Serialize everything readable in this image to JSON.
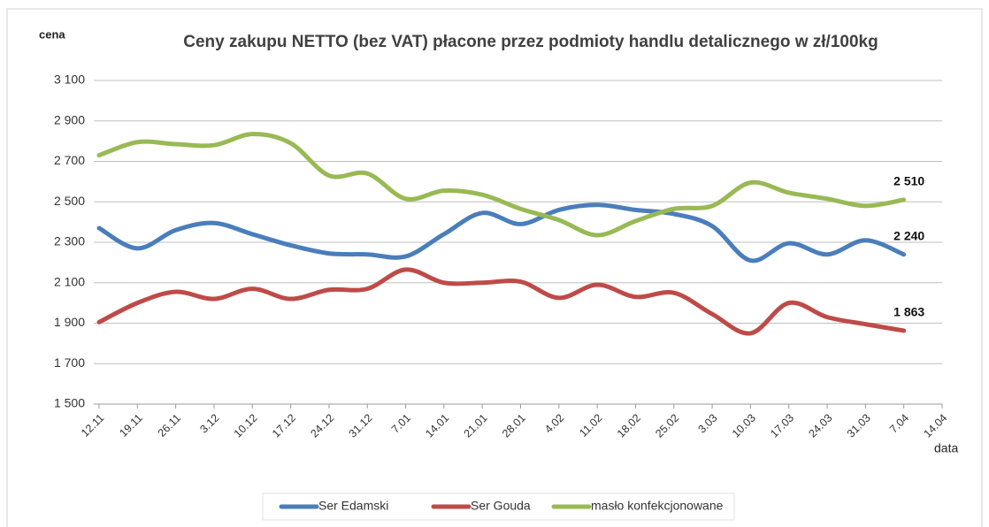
{
  "chart_data": {
    "type": "line",
    "title": "Ceny zakupu NETTO (bez VAT) płacone przez podmioty handlu detalicznego w zł/100kg",
    "y_label": "cena",
    "x_label": "data",
    "categories": [
      "12.11",
      "19.11",
      "26.11",
      "3.12",
      "10.12",
      "17.12",
      "24.12",
      "31.12",
      "7.01",
      "14.01",
      "21.01",
      "28.01",
      "4.02",
      "11.02",
      "18.02",
      "25.02",
      "3.03",
      "10.03",
      "17.03",
      "24.03",
      "31.03",
      "7.04",
      "14.04"
    ],
    "series": [
      {
        "name": "Ser Edamski",
        "color": "#4a7ebb",
        "values": [
          2370,
          2270,
          2360,
          2395,
          2340,
          2285,
          2245,
          2240,
          2230,
          2340,
          2445,
          2390,
          2460,
          2485,
          2460,
          2440,
          2380,
          2210,
          2295,
          2240,
          2310,
          2240,
          null
        ],
        "value_labels": [
          null,
          null,
          null,
          null,
          null,
          null,
          null,
          null,
          null,
          null,
          null,
          null,
          null,
          null,
          null,
          null,
          null,
          null,
          null,
          null,
          null,
          "2 240",
          null
        ]
      },
      {
        "name": "Ser Gouda",
        "color": "#be4b48",
        "values": [
          1905,
          2000,
          2055,
          2020,
          2070,
          2020,
          2065,
          2070,
          2165,
          2100,
          2100,
          2105,
          2025,
          2090,
          2030,
          2050,
          1945,
          1850,
          2000,
          1930,
          1895,
          1863,
          null
        ],
        "value_labels": [
          null,
          null,
          null,
          null,
          null,
          null,
          null,
          null,
          null,
          null,
          null,
          null,
          null,
          null,
          null,
          null,
          null,
          null,
          null,
          null,
          null,
          "1 863",
          null
        ]
      },
      {
        "name": "masło konfekcjonowane",
        "color": "#98b954",
        "values": [
          2730,
          2795,
          2785,
          2780,
          2835,
          2790,
          2630,
          2640,
          2515,
          2555,
          2535,
          2465,
          2410,
          2335,
          2405,
          2465,
          2480,
          2595,
          2545,
          2515,
          2480,
          2510,
          null
        ],
        "value_labels": [
          null,
          null,
          null,
          null,
          null,
          null,
          null,
          null,
          null,
          null,
          null,
          null,
          null,
          null,
          null,
          null,
          null,
          null,
          null,
          null,
          null,
          "2 510",
          null
        ]
      }
    ],
    "ylim": [
      1500,
      3100
    ],
    "yticks": [
      {
        "value": 1500,
        "label": "1 500"
      },
      {
        "value": 1700,
        "label": "1 700"
      },
      {
        "value": 1900,
        "label": "1 900"
      },
      {
        "value": 2100,
        "label": "2 100"
      },
      {
        "value": 2300,
        "label": "2 300"
      },
      {
        "value": 2500,
        "label": "2 500"
      },
      {
        "value": 2700,
        "label": "2 700"
      },
      {
        "value": 2900,
        "label": "2 900"
      },
      {
        "value": 3100,
        "label": "3 100"
      }
    ],
    "grid": true,
    "smooth": true,
    "legend": "bottom"
  }
}
